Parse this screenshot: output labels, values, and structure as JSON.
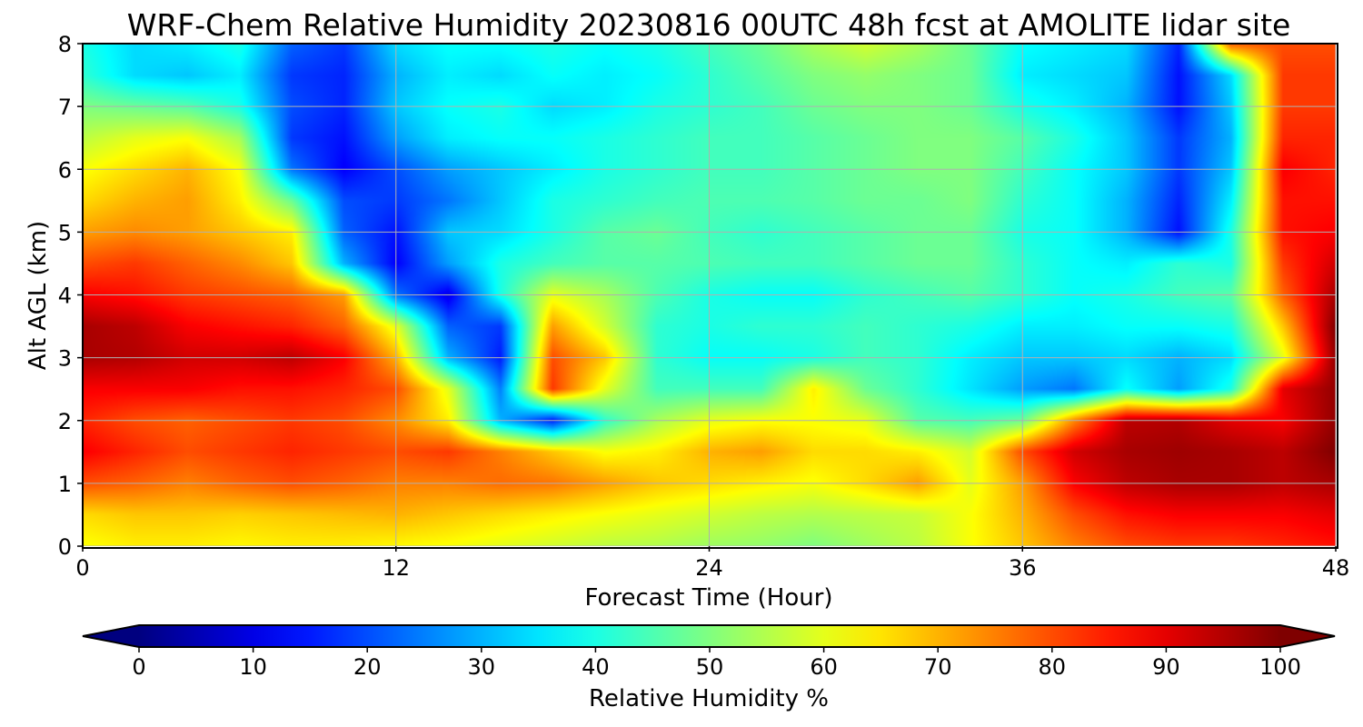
{
  "chart_data": {
    "type": "heatmap",
    "title": "WRF-Chem Relative Humidity 20230816 00UTC 48h fcst at AMOLITE lidar site",
    "xlabel": "Forecast Time (Hour)",
    "ylabel": "Alt AGL (km)",
    "xlim": [
      0,
      48
    ],
    "ylim": [
      0,
      8
    ],
    "x_ticks": [
      0,
      12,
      24,
      36,
      48
    ],
    "y_ticks": [
      0,
      1,
      2,
      3,
      4,
      5,
      6,
      7,
      8
    ],
    "grid": true,
    "colormap": "jet",
    "colorbar": {
      "label": "Relative Humidity %",
      "orientation": "horizontal",
      "position": "bottom",
      "range": [
        0,
        100
      ],
      "ticks": [
        0,
        10,
        20,
        30,
        40,
        50,
        60,
        70,
        80,
        90,
        100
      ],
      "extend": "both"
    },
    "x": [
      0,
      2,
      4,
      6,
      8,
      10,
      12,
      14,
      16,
      18,
      20,
      22,
      24,
      26,
      28,
      30,
      32,
      34,
      36,
      38,
      40,
      42,
      44,
      46,
      48
    ],
    "y": [
      0,
      0.5,
      1,
      1.5,
      2,
      2.5,
      3,
      3.5,
      4,
      4.5,
      5,
      5.5,
      6,
      6.5,
      7,
      7.5,
      8
    ],
    "z": [
      [
        62,
        64,
        64,
        63,
        64,
        64,
        63,
        62,
        60,
        58,
        56,
        55,
        53,
        52,
        50,
        53,
        56,
        62,
        68,
        75,
        80,
        82,
        82,
        84,
        86
      ],
      [
        66,
        68,
        68,
        67,
        68,
        69,
        70,
        68,
        66,
        64,
        62,
        60,
        58,
        56,
        55,
        56,
        57,
        62,
        70,
        80,
        86,
        88,
        88,
        88,
        90
      ],
      [
        80,
        78,
        75,
        78,
        80,
        78,
        75,
        75,
        77,
        76,
        72,
        68,
        66,
        64,
        62,
        66,
        72,
        60,
        72,
        88,
        94,
        96,
        96,
        94,
        96
      ],
      [
        88,
        84,
        80,
        82,
        84,
        82,
        80,
        82,
        75,
        68,
        62,
        64,
        70,
        72,
        66,
        66,
        64,
        58,
        80,
        92,
        96,
        97,
        96,
        94,
        100
      ],
      [
        84,
        80,
        78,
        80,
        82,
        80,
        74,
        64,
        30,
        15,
        42,
        54,
        60,
        62,
        62,
        60,
        46,
        44,
        48,
        74,
        94,
        95,
        90,
        88,
        98
      ],
      [
        88,
        88,
        88,
        86,
        86,
        84,
        80,
        60,
        25,
        82,
        60,
        44,
        44,
        44,
        64,
        48,
        42,
        35,
        28,
        24,
        38,
        28,
        40,
        90,
        98
      ],
      [
        96,
        95,
        92,
        92,
        94,
        88,
        70,
        30,
        15,
        80,
        68,
        42,
        38,
        38,
        40,
        44,
        42,
        36,
        32,
        32,
        34,
        30,
        34,
        60,
        98
      ],
      [
        96,
        94,
        88,
        86,
        84,
        78,
        60,
        22,
        18,
        72,
        58,
        42,
        40,
        42,
        42,
        44,
        42,
        40,
        36,
        36,
        38,
        38,
        40,
        68,
        100
      ],
      [
        88,
        86,
        82,
        80,
        78,
        72,
        24,
        10,
        40,
        60,
        54,
        45,
        40,
        38,
        38,
        42,
        44,
        46,
        42,
        38,
        40,
        44,
        46,
        78,
        96
      ],
      [
        80,
        82,
        78,
        74,
        68,
        30,
        12,
        28,
        40,
        44,
        46,
        46,
        45,
        44,
        44,
        46,
        48,
        48,
        42,
        38,
        36,
        42,
        40,
        82,
        92
      ],
      [
        72,
        74,
        72,
        68,
        64,
        22,
        14,
        32,
        34,
        40,
        46,
        48,
        44,
        42,
        44,
        46,
        48,
        48,
        40,
        38,
        30,
        14,
        40,
        86,
        88
      ],
      [
        66,
        70,
        72,
        64,
        48,
        20,
        18,
        24,
        32,
        40,
        42,
        44,
        45,
        45,
        46,
        48,
        48,
        50,
        42,
        38,
        30,
        16,
        36,
        86,
        86
      ],
      [
        62,
        66,
        70,
        62,
        24,
        12,
        20,
        28,
        32,
        36,
        40,
        42,
        44,
        44,
        46,
        48,
        50,
        50,
        44,
        38,
        32,
        18,
        32,
        88,
        84
      ],
      [
        56,
        60,
        62,
        54,
        18,
        14,
        28,
        36,
        38,
        38,
        40,
        42,
        44,
        44,
        46,
        48,
        50,
        50,
        46,
        40,
        32,
        18,
        30,
        84,
        84
      ],
      [
        50,
        48,
        46,
        40,
        20,
        16,
        32,
        38,
        40,
        34,
        36,
        40,
        42,
        44,
        48,
        50,
        50,
        48,
        40,
        36,
        30,
        14,
        32,
        82,
        82
      ],
      [
        42,
        34,
        32,
        36,
        18,
        16,
        30,
        36,
        34,
        38,
        36,
        38,
        42,
        46,
        50,
        52,
        50,
        48,
        36,
        34,
        32,
        14,
        34,
        82,
        82
      ],
      [
        40,
        34,
        36,
        40,
        22,
        18,
        34,
        38,
        38,
        40,
        38,
        40,
        44,
        48,
        54,
        58,
        54,
        48,
        38,
        36,
        34,
        16,
        78,
        80,
        80
      ]
    ]
  }
}
